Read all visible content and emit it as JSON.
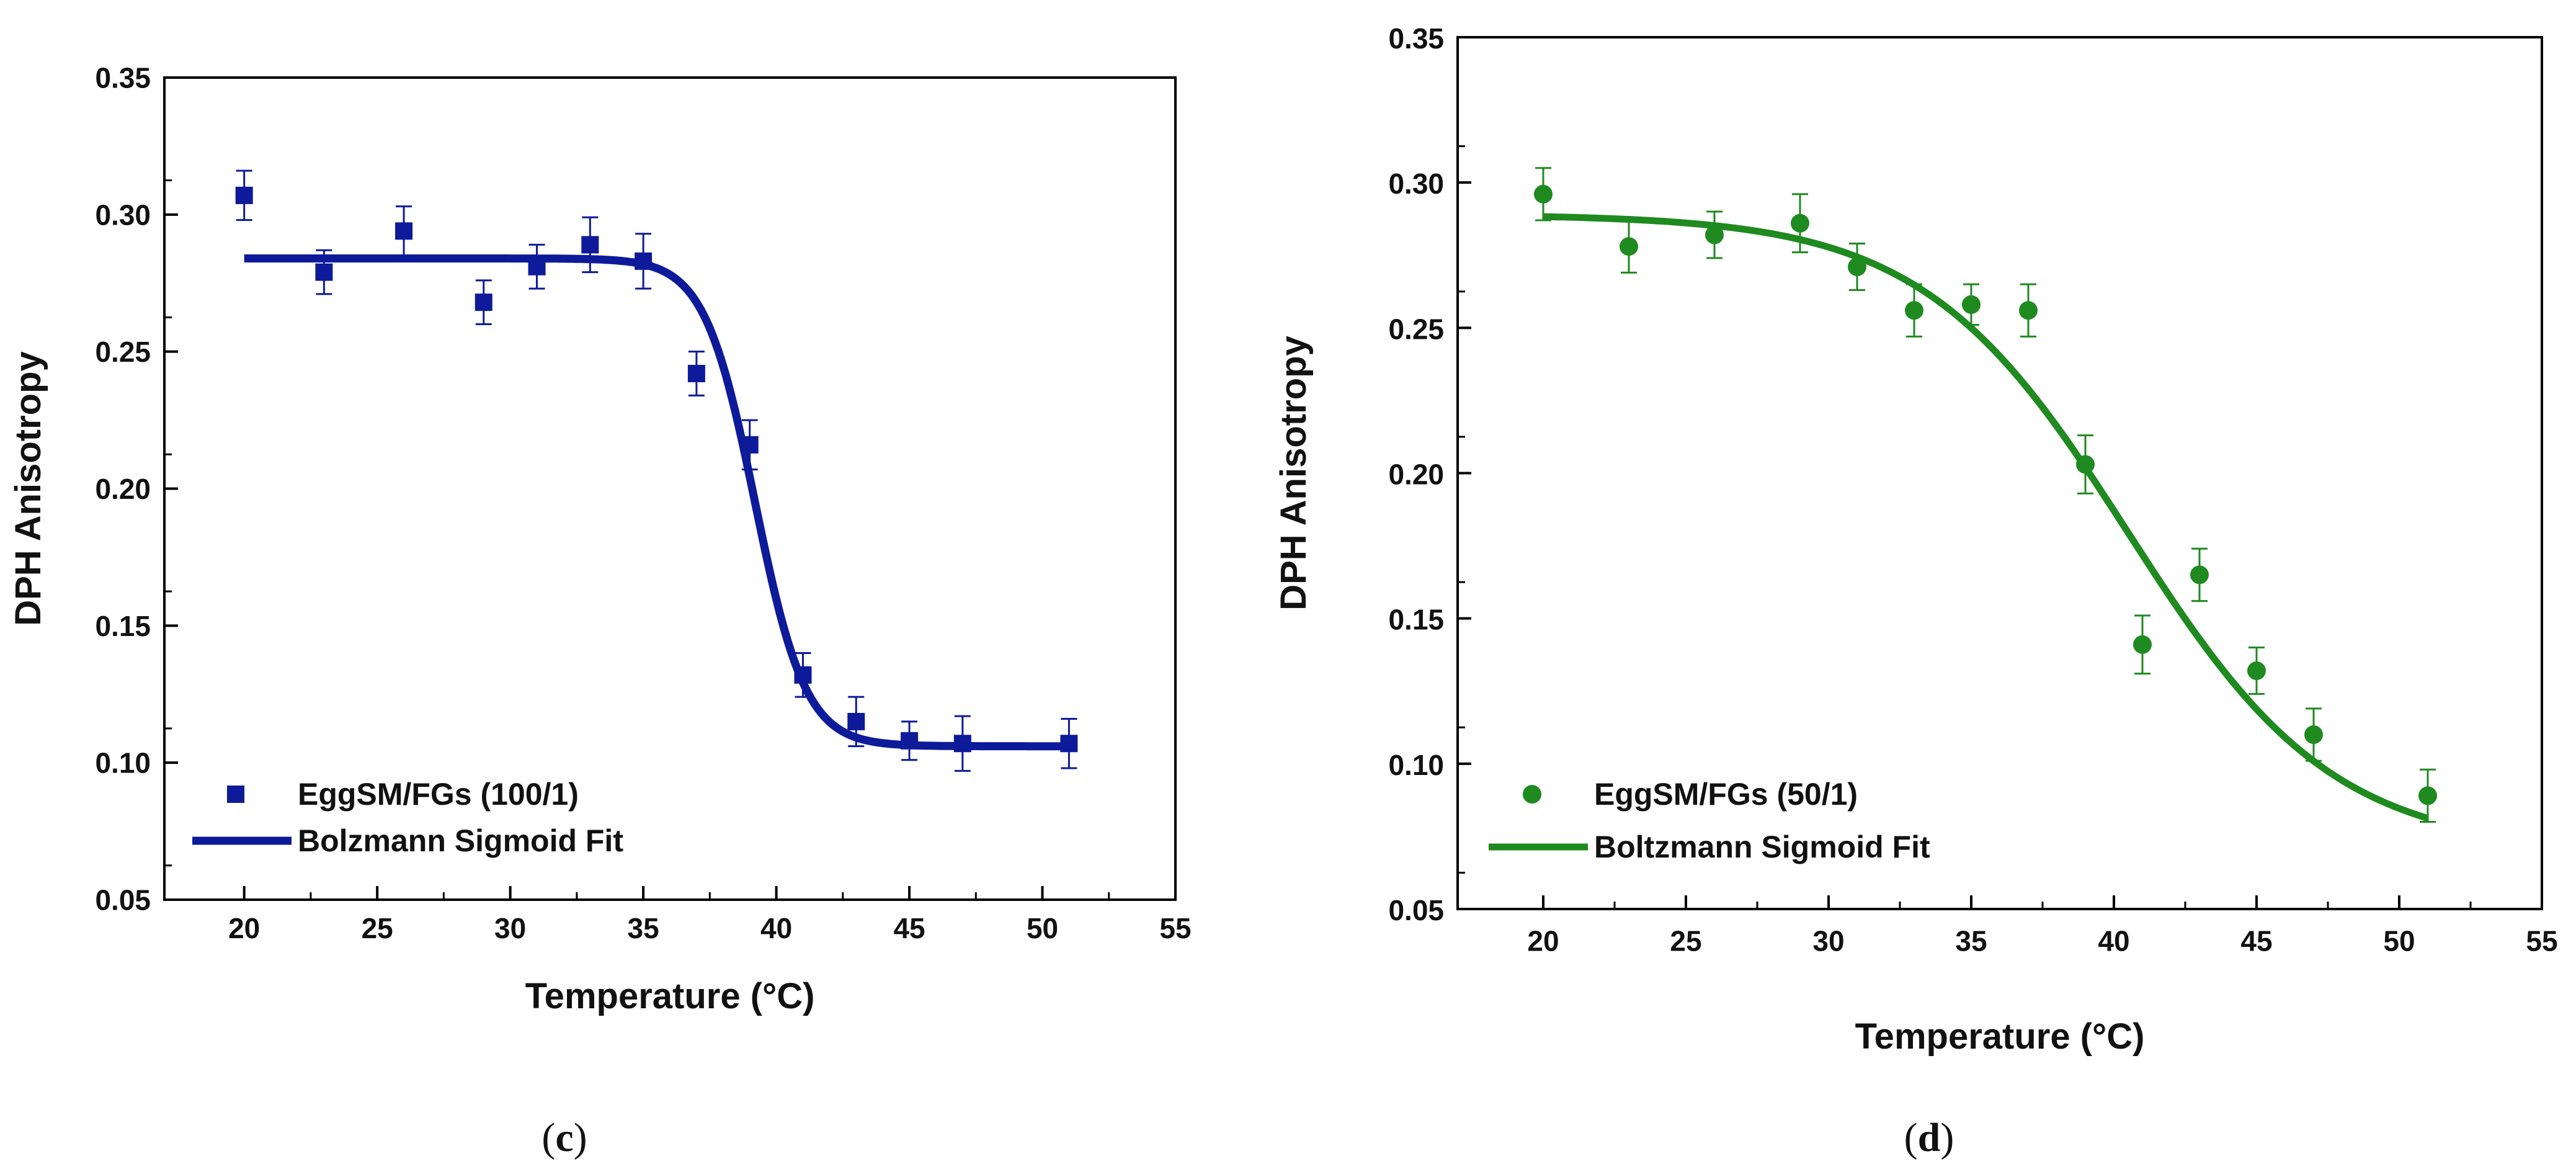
{
  "chart_data": [
    {
      "type": "scatter",
      "panel_label": "c",
      "xlabel": "Temperature (°C)",
      "ylabel": "DPH Anisotropy",
      "xlim": [
        17,
        55
      ],
      "ylim": [
        0.05,
        0.35
      ],
      "xticks": [
        20,
        25,
        30,
        35,
        40,
        45,
        50,
        55
      ],
      "yticks": [
        0.05,
        0.1,
        0.15,
        0.2,
        0.25,
        0.3,
        0.35
      ],
      "color": "#0d1a9a",
      "legend_position": "bottom-left",
      "series": [
        {
          "name": "EggSM/FGs (100/1)",
          "marker": "square",
          "x": [
            20,
            23,
            26,
            29,
            31,
            33,
            35,
            37,
            39,
            41,
            43,
            45,
            47,
            51
          ],
          "y": [
            0.307,
            0.279,
            0.294,
            0.268,
            0.281,
            0.289,
            0.283,
            0.242,
            0.216,
            0.132,
            0.115,
            0.108,
            0.107,
            0.107
          ],
          "error": [
            0.009,
            0.008,
            0.009,
            0.008,
            0.008,
            0.01,
            0.01,
            0.008,
            0.009,
            0.008,
            0.009,
            0.007,
            0.01,
            0.009
          ]
        },
        {
          "name": "Bolzmann Sigmoid Fit",
          "style": "line",
          "fit": "boltzmann",
          "A1": 0.284,
          "A2": 0.106,
          "x0": 39.2,
          "dx": 0.95,
          "x_range": [
            20,
            51
          ]
        }
      ]
    },
    {
      "type": "scatter",
      "panel_label": "d",
      "xlabel": "Temperature (°C)",
      "ylabel": "DPH Anisotropy",
      "xlim": [
        17,
        55
      ],
      "ylim": [
        0.05,
        0.35
      ],
      "xticks": [
        20,
        25,
        30,
        35,
        40,
        45,
        50,
        55
      ],
      "yticks": [
        0.05,
        0.1,
        0.15,
        0.2,
        0.25,
        0.3,
        0.35
      ],
      "color": "#1f8a1f",
      "legend_position": "bottom-left",
      "series": [
        {
          "name": "EggSM/FGs (50/1)",
          "marker": "circle",
          "x": [
            20,
            23,
            26,
            29,
            31,
            33,
            35,
            37,
            39,
            41,
            43,
            45,
            47,
            51
          ],
          "y": [
            0.296,
            0.278,
            0.282,
            0.286,
            0.271,
            0.256,
            0.258,
            0.256,
            0.203,
            0.141,
            0.165,
            0.132,
            0.11,
            0.089
          ],
          "error": [
            0.009,
            0.009,
            0.008,
            0.01,
            0.008,
            0.009,
            0.007,
            0.009,
            0.01,
            0.01,
            0.009,
            0.008,
            0.009,
            0.009
          ]
        },
        {
          "name": "Boltzmann Sigmoid Fit",
          "style": "line",
          "fit": "boltzmann",
          "A1": 0.289,
          "A2": 0.07,
          "x0": 40.5,
          "dx": 3.6,
          "x_range": [
            20,
            51
          ]
        }
      ]
    }
  ]
}
